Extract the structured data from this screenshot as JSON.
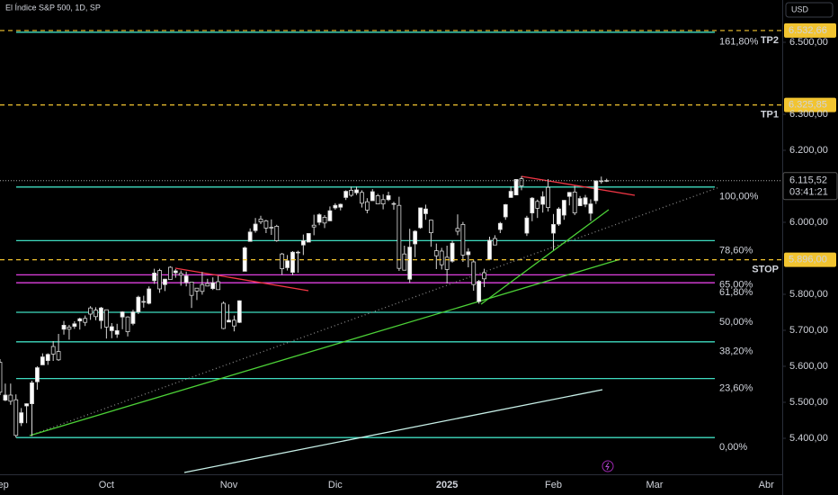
{
  "header": {
    "symbol": "El Índice S&P 500, 1D, SP",
    "currency": "USD"
  },
  "chart_data": {
    "type": "candlestick",
    "ohlc": [
      [
        5611,
        5620,
        5520,
        5528
      ],
      [
        5506,
        5552,
        5503,
        5520
      ],
      [
        5520,
        5552,
        5493,
        5503
      ],
      [
        5507,
        5522,
        5402,
        5408
      ],
      [
        5443,
        5484,
        5434,
        5471
      ],
      [
        5490,
        5497,
        5442,
        5496
      ],
      [
        5496,
        5560,
        5406,
        5554
      ],
      [
        5557,
        5600,
        5535,
        5596
      ],
      [
        5604,
        5636,
        5604,
        5626
      ],
      [
        5616,
        5636,
        5604,
        5633
      ],
      [
        5655,
        5670,
        5615,
        5634
      ],
      [
        5641,
        5690,
        5615,
        5618
      ],
      [
        5703,
        5726,
        5688,
        5714
      ],
      [
        5709,
        5715,
        5674,
        5703
      ],
      [
        5711,
        5725,
        5704,
        5718
      ],
      [
        5726,
        5735,
        5702,
        5732
      ],
      [
        5733,
        5741,
        5712,
        5722
      ],
      [
        5762,
        5767,
        5729,
        5745
      ],
      [
        5756,
        5764,
        5728,
        5738
      ],
      [
        5727,
        5765,
        5704,
        5762
      ],
      [
        5757,
        5757,
        5677,
        5709
      ],
      [
        5699,
        5720,
        5678,
        5710
      ],
      [
        5689,
        5718,
        5679,
        5699
      ],
      [
        5737,
        5753,
        5703,
        5751
      ],
      [
        5737,
        5739,
        5683,
        5696
      ],
      [
        5719,
        5757,
        5714,
        5751
      ],
      [
        5751,
        5796,
        5745,
        5792
      ],
      [
        5778,
        5796,
        5763,
        5780
      ],
      [
        5775,
        5822,
        5772,
        5815
      ],
      [
        5838,
        5871,
        5829,
        5859
      ],
      [
        5866,
        5871,
        5804,
        5815
      ],
      [
        5827,
        5843,
        5809,
        5842
      ],
      [
        5875,
        5878,
        5840,
        5841
      ],
      [
        5860,
        5870,
        5846,
        5865
      ],
      [
        5858,
        5866,
        5824,
        5853
      ],
      [
        5833,
        5863,
        5822,
        5851
      ],
      [
        5834,
        5834,
        5762,
        5797
      ],
      [
        5817,
        5817,
        5784,
        5809
      ],
      [
        5827,
        5862,
        5799,
        5808
      ],
      [
        5830,
        5843,
        5822,
        5823
      ],
      [
        5816,
        5847,
        5812,
        5832
      ],
      [
        5835,
        5851,
        5813,
        5813
      ],
      [
        5775,
        5780,
        5703,
        5705
      ],
      [
        5723,
        5772,
        5723,
        5728
      ],
      [
        5728,
        5741,
        5697,
        5712
      ],
      [
        5722,
        5783,
        5720,
        5782
      ],
      [
        5864,
        5933,
        5864,
        5929
      ],
      [
        5947,
        5983,
        5947,
        5973
      ],
      [
        5977,
        6012,
        5971,
        5995
      ],
      [
        6009,
        6018,
        5995,
        6001
      ],
      [
        6004,
        6007,
        5970,
        5984
      ],
      [
        5986,
        6008,
        5965,
        5985
      ],
      [
        5989,
        5993,
        5946,
        5949
      ],
      [
        5912,
        5915,
        5854,
        5871
      ],
      [
        5874,
        5909,
        5866,
        5893
      ],
      [
        5861,
        5920,
        5853,
        5917
      ],
      [
        5917,
        5921,
        5860,
        5917
      ],
      [
        5937,
        5966,
        5909,
        5949
      ],
      [
        5945,
        5970,
        5945,
        5969
      ],
      [
        5992,
        6021,
        5964,
        5987
      ],
      [
        6000,
        6025,
        5992,
        6021
      ],
      [
        6014,
        6020,
        5984,
        5998
      ],
      [
        6004,
        6044,
        6004,
        6032
      ],
      [
        6040,
        6053,
        6035,
        6047
      ],
      [
        6042,
        6052,
        6033,
        6050
      ],
      [
        6069,
        6089,
        6062,
        6086
      ],
      [
        6089,
        6099,
        6071,
        6075
      ],
      [
        6082,
        6099,
        6076,
        6090
      ],
      [
        6083,
        6089,
        6041,
        6053
      ],
      [
        6057,
        6067,
        6025,
        6034
      ],
      [
        6060,
        6092,
        6060,
        6085
      ],
      [
        6074,
        6079,
        6051,
        6051
      ],
      [
        6063,
        6078,
        6036,
        6051
      ],
      [
        6063,
        6085,
        6059,
        6074
      ],
      [
        6052,
        6057,
        6035,
        6050
      ],
      [
        6047,
        6071,
        5865,
        5872
      ],
      [
        5912,
        5935,
        5866,
        5867
      ],
      [
        5842,
        5982,
        5832,
        5931
      ],
      [
        5940,
        5978,
        5903,
        5975
      ],
      [
        5985,
        6040,
        5982,
        6040
      ],
      [
        6024,
        6049,
        6007,
        6037
      ],
      [
        6006,
        6007,
        5932,
        5971
      ],
      [
        5921,
        5941,
        5870,
        5907
      ],
      [
        5920,
        5929,
        5869,
        5882
      ],
      [
        5903,
        5935,
        5830,
        5869
      ],
      [
        5892,
        5949,
        5888,
        5942
      ],
      [
        5983,
        6022,
        5964,
        5975
      ],
      [
        5994,
        6001,
        5890,
        5909
      ],
      [
        5910,
        5928,
        5875,
        5918
      ],
      [
        5890,
        5896,
        5810,
        5827
      ],
      [
        5780,
        5840,
        5774,
        5836
      ],
      [
        5860,
        5871,
        5820,
        5843
      ],
      [
        5897,
        5960,
        5897,
        5950
      ],
      [
        5955,
        5964,
        5937,
        5937
      ],
      [
        5980,
        6001,
        5970,
        5997
      ],
      [
        6015,
        6051,
        6007,
        6049
      ],
      [
        6069,
        6100,
        6068,
        6086
      ],
      [
        6076,
        6119,
        6075,
        6119
      ],
      [
        6121,
        6128,
        6089,
        6101
      ],
      [
        5970,
        6018,
        5962,
        6012
      ],
      [
        6026,
        6070,
        6003,
        6067
      ],
      [
        6058,
        6063,
        6012,
        6039
      ],
      [
        6050,
        6086,
        6027,
        6071
      ],
      [
        6097,
        6120,
        6030,
        6041
      ],
      [
        5970,
        6023,
        5923,
        5994
      ],
      [
        5995,
        6042,
        5990,
        6037
      ],
      [
        6020,
        6062,
        6007,
        6061
      ],
      [
        6072,
        6084,
        6047,
        6083
      ],
      [
        6084,
        6101,
        6020,
        6026
      ],
      [
        6046,
        6073,
        6045,
        6066
      ],
      [
        6050,
        6076,
        6042,
        6068
      ],
      [
        6025,
        6064,
        6004,
        6051
      ],
      [
        6060,
        6116,
        6051,
        6115
      ],
      [
        6115,
        6127,
        6107,
        6115
      ],
      [
        6116,
        6121,
        6112,
        6115.52
      ]
    ],
    "up_color": "#ffffff",
    "down_color": "#000000",
    "xlim": [
      0,
      147
    ],
    "xticks": [
      {
        "value": 0,
        "label": "Sep"
      },
      {
        "value": 20,
        "label": "Oct"
      },
      {
        "value": 43,
        "label": "Nov"
      },
      {
        "value": 63,
        "label": "Dic"
      },
      {
        "value": 84,
        "label": "2025"
      },
      {
        "value": 104,
        "label": "Feb"
      },
      {
        "value": 123,
        "label": "Mar"
      },
      {
        "value": 144,
        "label": "Abr"
      }
    ],
    "ylim": [
      5300,
      6617.5
    ],
    "yticks": [
      {
        "value": 6500,
        "label": "6.500,00"
      },
      {
        "value": 6300,
        "label": "6.300,00"
      },
      {
        "value": 6200,
        "label": "6.200,00"
      },
      {
        "value": 6000,
        "label": "6.000,00"
      },
      {
        "value": 5800,
        "label": "5.800,00"
      },
      {
        "value": 5700,
        "label": "5.700,00"
      },
      {
        "value": 5600,
        "label": "5.600,00"
      },
      {
        "value": 5500,
        "label": "5.500,00"
      },
      {
        "value": 5400,
        "label": "5.400,00"
      }
    ],
    "last_price": {
      "value": 6115.52,
      "label": "6.115,52"
    },
    "countdown": "03:41:21",
    "fib_levels": [
      {
        "value": 6528,
        "label": "161,80%",
        "color": "#3fdcc0"
      },
      {
        "value": 6098,
        "label": "100,00%",
        "color": "#3fdcc0"
      },
      {
        "value": 5949,
        "label": "78,60%",
        "color": "#3fdcc0"
      },
      {
        "value": 5854,
        "label": "65,00%",
        "color": "#e040e0"
      },
      {
        "value": 5832,
        "label": "61,80%",
        "color": "#e040e0"
      },
      {
        "value": 5750,
        "label": "50,00%",
        "color": "#3fdcc0"
      },
      {
        "value": 5668,
        "label": "38,20%",
        "color": "#3fdcc0"
      },
      {
        "value": 5566,
        "label": "23,60%",
        "color": "#3fdcc0"
      },
      {
        "value": 5402,
        "label": "0,00%",
        "color": "#3fdcc0"
      }
    ],
    "targets": [
      {
        "name": "TP2",
        "value": 6532.66,
        "label": "6.532,66"
      },
      {
        "name": "TP1",
        "value": 6325.85,
        "label": "6.325,85"
      },
      {
        "name": "STOP",
        "value": 5896,
        "label": "5.896,00"
      }
    ],
    "target_color": "#f2c430"
  }
}
